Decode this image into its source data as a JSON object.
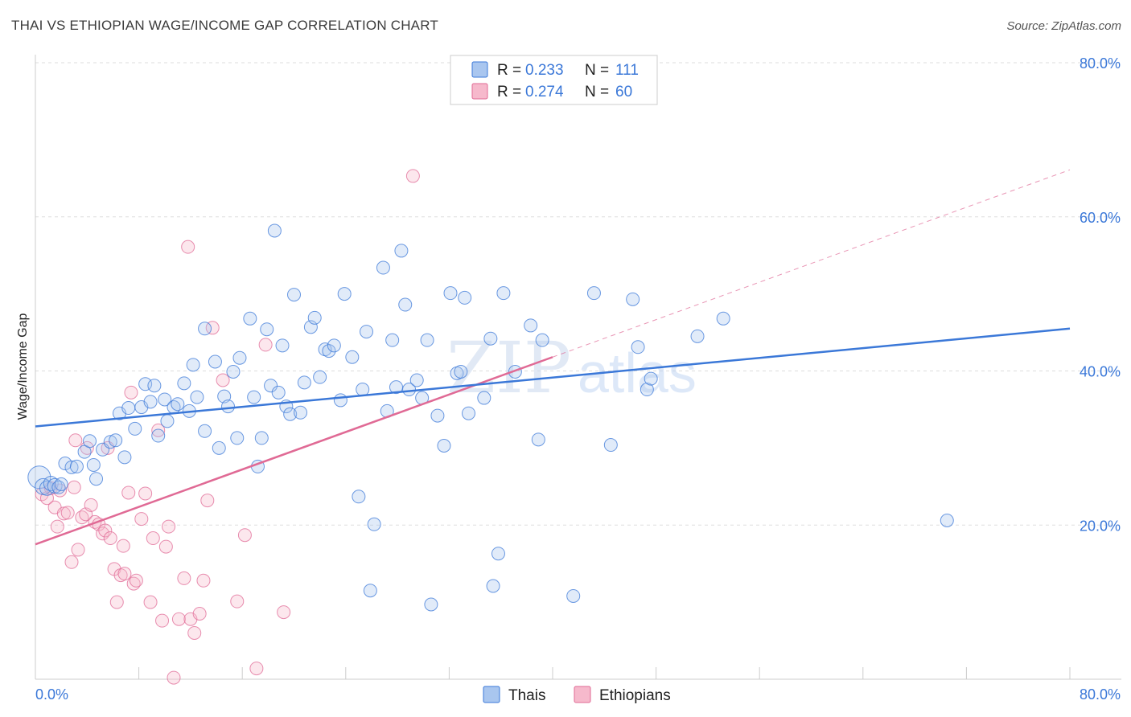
{
  "title": "THAI VS ETHIOPIAN WAGE/INCOME GAP CORRELATION CHART",
  "source": "Source: ZipAtlas.com",
  "watermark": {
    "zip": "ZIP",
    "atlas": "atlas"
  },
  "colors": {
    "thai": "#3b78d8",
    "thai_fill": "#a9c6ef",
    "ethiopian": "#e06a95",
    "ethiopian_fill": "#f6b9cc",
    "axis_label": "#3b78d8",
    "grid": "#dddddd"
  },
  "legend": {
    "thai": {
      "r_label": "R =",
      "r_value": "0.233",
      "n_label": "N =",
      "n_value": "111"
    },
    "ethiopian": {
      "r_label": "R =",
      "r_value": "0.274",
      "n_label": "N =",
      "n_value": "60"
    }
  },
  "bottom_legend": {
    "thai": "Thais",
    "ethiopian": "Ethiopians"
  },
  "chart_data": {
    "type": "scatter",
    "xlabel": "",
    "ylabel": "Wage/Income Gap",
    "xlim": [
      0,
      80
    ],
    "ylim": [
      0,
      80
    ],
    "x_tick_labels": [
      "0.0%",
      "80.0%"
    ],
    "y_tick_labels": [
      "20.0%",
      "40.0%",
      "60.0%",
      "80.0%"
    ],
    "y_ticks": [
      20,
      40,
      60,
      80
    ],
    "grid": true,
    "legend_position": "top-center",
    "series": [
      {
        "name": "Thais",
        "R": 0.233,
        "N": 111,
        "trend": {
          "x0": 0,
          "y0": 32.8,
          "x1": 80,
          "y1": 45.5
        },
        "points": [
          [
            0.3,
            26.2,
            14
          ],
          [
            0.6,
            25.0,
            10
          ],
          [
            0.9,
            24.8,
            9
          ],
          [
            1.2,
            25.4,
            9
          ],
          [
            1.5,
            25.1,
            9
          ],
          [
            1.8,
            24.9,
            8
          ],
          [
            2.0,
            25.3,
            8
          ],
          [
            2.3,
            28.0,
            8
          ],
          [
            2.8,
            27.5,
            8
          ],
          [
            3.2,
            27.6,
            8
          ],
          [
            3.8,
            29.5,
            8
          ],
          [
            4.2,
            30.9,
            8
          ],
          [
            4.5,
            27.8,
            8
          ],
          [
            4.7,
            26.0,
            8
          ],
          [
            5.2,
            29.8,
            8
          ],
          [
            5.8,
            30.8,
            8
          ],
          [
            6.2,
            31.0,
            8
          ],
          [
            6.5,
            34.5,
            8
          ],
          [
            6.9,
            28.8,
            8
          ],
          [
            7.2,
            35.2,
            8
          ],
          [
            7.7,
            32.5,
            8
          ],
          [
            8.2,
            35.3,
            8
          ],
          [
            8.5,
            38.3,
            8
          ],
          [
            8.9,
            36.0,
            8
          ],
          [
            9.2,
            38.1,
            8
          ],
          [
            9.5,
            31.6,
            8
          ],
          [
            10.0,
            36.3,
            8
          ],
          [
            10.2,
            33.5,
            8
          ],
          [
            10.7,
            35.3,
            8
          ],
          [
            11.0,
            35.7,
            8
          ],
          [
            11.5,
            38.4,
            8
          ],
          [
            11.9,
            34.8,
            8
          ],
          [
            12.2,
            40.8,
            8
          ],
          [
            12.5,
            36.6,
            8
          ],
          [
            13.1,
            32.2,
            8
          ],
          [
            13.1,
            45.5,
            8
          ],
          [
            13.9,
            41.2,
            8
          ],
          [
            14.2,
            30.0,
            8
          ],
          [
            14.6,
            36.7,
            8
          ],
          [
            14.9,
            35.4,
            8
          ],
          [
            15.3,
            39.9,
            8
          ],
          [
            15.6,
            31.3,
            8
          ],
          [
            15.8,
            41.7,
            8
          ],
          [
            16.6,
            46.8,
            8
          ],
          [
            16.9,
            36.6,
            8
          ],
          [
            17.2,
            27.6,
            8
          ],
          [
            17.5,
            31.3,
            8
          ],
          [
            17.9,
            45.4,
            8
          ],
          [
            18.2,
            38.1,
            8
          ],
          [
            18.5,
            58.2,
            8
          ],
          [
            18.8,
            37.2,
            8
          ],
          [
            19.1,
            43.3,
            8
          ],
          [
            19.4,
            35.4,
            8
          ],
          [
            19.7,
            34.4,
            8
          ],
          [
            20.0,
            49.9,
            8
          ],
          [
            20.5,
            34.6,
            8
          ],
          [
            20.8,
            38.5,
            8
          ],
          [
            21.3,
            45.7,
            8
          ],
          [
            21.6,
            46.9,
            8
          ],
          [
            22.0,
            39.2,
            8
          ],
          [
            22.4,
            42.8,
            8
          ],
          [
            22.7,
            42.6,
            8
          ],
          [
            23.1,
            43.3,
            8
          ],
          [
            23.6,
            36.2,
            8
          ],
          [
            23.9,
            50.0,
            8
          ],
          [
            24.5,
            41.8,
            8
          ],
          [
            25.0,
            23.7,
            8
          ],
          [
            25.3,
            37.6,
            8
          ],
          [
            25.6,
            45.1,
            8
          ],
          [
            25.9,
            11.5,
            8
          ],
          [
            26.2,
            20.1,
            8
          ],
          [
            26.9,
            53.4,
            8
          ],
          [
            27.2,
            34.8,
            8
          ],
          [
            27.6,
            44.0,
            8
          ],
          [
            27.9,
            37.9,
            8
          ],
          [
            28.3,
            55.6,
            8
          ],
          [
            28.6,
            48.6,
            8
          ],
          [
            28.9,
            37.6,
            8
          ],
          [
            29.5,
            38.8,
            8
          ],
          [
            29.9,
            36.5,
            8
          ],
          [
            30.3,
            44.0,
            8
          ],
          [
            30.6,
            9.7,
            8
          ],
          [
            31.1,
            34.2,
            8
          ],
          [
            31.6,
            30.3,
            8
          ],
          [
            32.1,
            50.1,
            8
          ],
          [
            32.6,
            39.7,
            8
          ],
          [
            32.9,
            39.9,
            8
          ],
          [
            33.2,
            49.5,
            8
          ],
          [
            33.5,
            34.5,
            8
          ],
          [
            34.7,
            36.5,
            8
          ],
          [
            35.2,
            44.2,
            8
          ],
          [
            35.8,
            16.3,
            8
          ],
          [
            35.4,
            12.1,
            8
          ],
          [
            36.2,
            50.1,
            8
          ],
          [
            37.1,
            39.9,
            8
          ],
          [
            38.3,
            45.9,
            8
          ],
          [
            38.9,
            31.1,
            8
          ],
          [
            39.2,
            44.0,
            8
          ],
          [
            41.6,
            10.8,
            8
          ],
          [
            43.2,
            50.1,
            8
          ],
          [
            44.5,
            30.4,
            8
          ],
          [
            46.2,
            49.3,
            8
          ],
          [
            46.6,
            43.1,
            8
          ],
          [
            47.3,
            37.6,
            8
          ],
          [
            47.6,
            39.0,
            8
          ],
          [
            51.2,
            44.5,
            8
          ],
          [
            53.2,
            46.8,
            8
          ],
          [
            70.5,
            20.6,
            8
          ]
        ]
      },
      {
        "name": "Ethiopians",
        "R": 0.274,
        "N": 60,
        "trend": {
          "x0": 0,
          "y0": 17.5,
          "x1": 40,
          "y1": 41.8
        },
        "trend_ext": {
          "x0": 40,
          "y0": 41.8,
          "x1": 80,
          "y1": 66.1
        },
        "points": [
          [
            0.5,
            24.0,
            8
          ],
          [
            0.9,
            23.5,
            8
          ],
          [
            1.2,
            24.8,
            8
          ],
          [
            1.5,
            22.3,
            8
          ],
          [
            1.7,
            19.8,
            8
          ],
          [
            1.9,
            24.5,
            8
          ],
          [
            2.2,
            21.5,
            8
          ],
          [
            2.5,
            21.6,
            8
          ],
          [
            2.8,
            15.2,
            8
          ],
          [
            3.0,
            24.9,
            8
          ],
          [
            3.1,
            31.0,
            8
          ],
          [
            3.3,
            16.8,
            8
          ],
          [
            3.6,
            21.0,
            8
          ],
          [
            3.9,
            21.4,
            8
          ],
          [
            4.0,
            30.0,
            8
          ],
          [
            4.3,
            22.6,
            8
          ],
          [
            4.6,
            20.4,
            8
          ],
          [
            4.9,
            20.1,
            8
          ],
          [
            5.2,
            18.9,
            8
          ],
          [
            5.4,
            19.3,
            8
          ],
          [
            5.6,
            30.0,
            8
          ],
          [
            5.8,
            18.3,
            8
          ],
          [
            6.1,
            14.3,
            8
          ],
          [
            6.3,
            10.0,
            8
          ],
          [
            6.6,
            13.5,
            8
          ],
          [
            6.8,
            17.3,
            8
          ],
          [
            6.9,
            13.7,
            8
          ],
          [
            7.2,
            24.2,
            8
          ],
          [
            7.4,
            37.2,
            8
          ],
          [
            7.6,
            12.4,
            8
          ],
          [
            7.8,
            12.8,
            8
          ],
          [
            8.2,
            20.8,
            8
          ],
          [
            8.5,
            24.1,
            8
          ],
          [
            8.9,
            10.0,
            8
          ],
          [
            9.1,
            18.3,
            8
          ],
          [
            9.5,
            32.3,
            8
          ],
          [
            9.8,
            7.6,
            8
          ],
          [
            10.1,
            17.2,
            8
          ],
          [
            10.3,
            19.8,
            8
          ],
          [
            10.7,
            0.2,
            8
          ],
          [
            11.1,
            7.8,
            8
          ],
          [
            11.5,
            13.1,
            8
          ],
          [
            11.8,
            56.1,
            8
          ],
          [
            12.0,
            7.8,
            8
          ],
          [
            12.3,
            6.0,
            8
          ],
          [
            12.7,
            8.5,
            8
          ],
          [
            13.0,
            12.8,
            8
          ],
          [
            13.3,
            23.2,
            8
          ],
          [
            13.7,
            45.6,
            8
          ],
          [
            14.5,
            38.8,
            8
          ],
          [
            15.6,
            10.1,
            8
          ],
          [
            16.2,
            18.7,
            8
          ],
          [
            17.1,
            1.4,
            8
          ],
          [
            17.8,
            43.4,
            8
          ],
          [
            19.2,
            8.7,
            8
          ],
          [
            29.2,
            65.3,
            8
          ]
        ]
      }
    ]
  }
}
